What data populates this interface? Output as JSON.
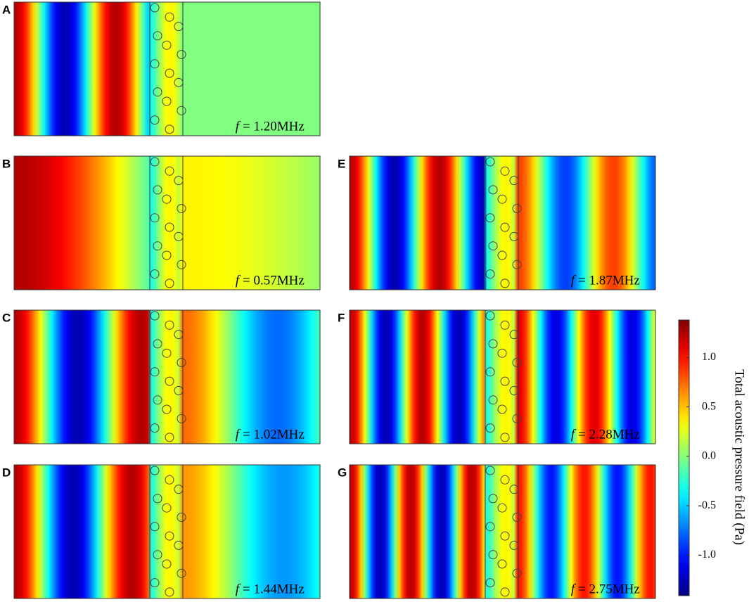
{
  "panels": [
    {
      "label": "A",
      "freq_symbol": "f",
      "freq": "= 1.20MHz"
    },
    {
      "label": "B",
      "freq_symbol": "f",
      "freq": "= 0.57MHz"
    },
    {
      "label": "C",
      "freq_symbol": "f",
      "freq": "= 1.02MHz"
    },
    {
      "label": "D",
      "freq_symbol": "f",
      "freq": "= 1.44MHz"
    },
    {
      "label": "E",
      "freq_symbol": "f",
      "freq": "= 1.87MHz"
    },
    {
      "label": "F",
      "freq_symbol": "f",
      "freq": "= 2.28MHz"
    },
    {
      "label": "G",
      "freq_symbol": "f",
      "freq": "= 2.75MHz"
    }
  ],
  "colorbar": {
    "title": "Total acoustic pressure field (Pa)",
    "range": [
      -1.41,
      1.38
    ],
    "ticks": [
      {
        "value": 1,
        "label": "1.0"
      },
      {
        "value": 0.5,
        "label": "0.5"
      },
      {
        "value": 0,
        "label": "0.0"
      },
      {
        "value": -0.5,
        "label": "-0.5"
      },
      {
        "value": -1,
        "label": "-1.0"
      }
    ]
  }
}
